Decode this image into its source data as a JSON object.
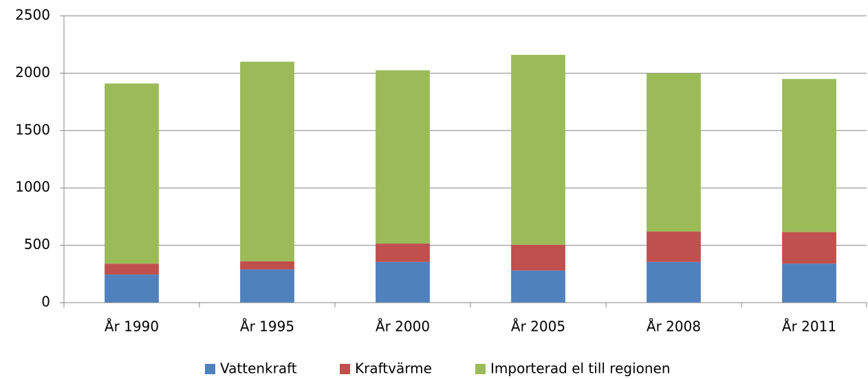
{
  "chart_data": {
    "type": "stacked_bar",
    "categories": [
      "År 1990",
      "År 1995",
      "År 2000",
      "År 2005",
      "År 2008",
      "År 2011"
    ],
    "series": [
      {
        "name": "Vattenkraft",
        "color": "#4f81bd",
        "values": [
          245,
          290,
          355,
          280,
          355,
          340
        ]
      },
      {
        "name": "Kraftvärme",
        "color": "#c0504d",
        "values": [
          95,
          70,
          160,
          225,
          265,
          275
        ]
      },
      {
        "name": "Importerad el till regionen",
        "color": "#9bbb59",
        "values": [
          1570,
          1740,
          1510,
          1655,
          1380,
          1335
        ]
      }
    ],
    "ylim": [
      0,
      2500
    ],
    "yticks": [
      0,
      500,
      1000,
      1500,
      2000,
      2500
    ],
    "grid": true,
    "legend": "bottom"
  }
}
